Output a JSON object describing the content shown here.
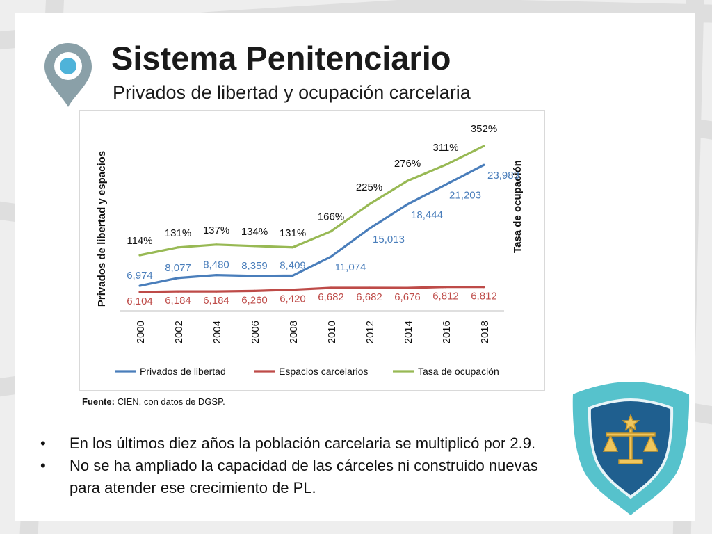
{
  "slide": {
    "title": "Sistema Penitenciario",
    "subtitle": "Privados de libertad y ocupación carcelaria",
    "source_label": "Fuente:",
    "source_text": "CIEN, con datos de DGSP.",
    "bullets": [
      "En los últimos diez años la población carcelaria se multiplicó por 2.9.",
      "No se ha ampliado la capacidad de las cárceles ni construido nuevas para atender ese crecimiento de PL."
    ],
    "bullet_glyph": "•"
  },
  "icons": {
    "location_pin": "location-pin-icon",
    "justice_badge": "scales-of-justice-icon"
  },
  "colors": {
    "pin": "#8aa0a8",
    "pin_inner": "#4fb3d9",
    "badge_outer": "#56c2cc",
    "badge_inner": "#1f5f8f"
  },
  "chart_data": {
    "type": "line",
    "x": [
      "2000",
      "2002",
      "2004",
      "2006",
      "2008",
      "2010",
      "2012",
      "2014",
      "2016",
      "2018"
    ],
    "ylabel_left": "Privados de libertad y espacios",
    "ylabel_right": "Tasa de ocupación",
    "series": [
      {
        "name": "Privados de libertad",
        "axis": "left",
        "color": "#4a7ebb",
        "values": [
          6974,
          8077,
          8480,
          8359,
          8409,
          11074,
          15013,
          18444,
          21203,
          23983
        ],
        "labels": [
          "6,974",
          "8,077",
          "8,480",
          "8,359",
          "8,409",
          "11,074",
          "15,013",
          "18,444",
          "21,203",
          "23,983"
        ]
      },
      {
        "name": "Espacios carcelarios",
        "axis": "left",
        "color": "#be4b48",
        "values": [
          6104,
          6184,
          6184,
          6260,
          6420,
          6682,
          6682,
          6676,
          6812,
          6812
        ],
        "labels": [
          "6,104",
          "6,184",
          "6,184",
          "6,260",
          "6,420",
          "6,682",
          "6,682",
          "6,676",
          "6,812",
          "6,812"
        ]
      },
      {
        "name": "Tasa de ocupación",
        "axis": "right",
        "color": "#98b954",
        "values": [
          114,
          131,
          137,
          134,
          131,
          166,
          225,
          276,
          311,
          352
        ],
        "labels": [
          "114%",
          "131%",
          "137%",
          "134%",
          "131%",
          "166%",
          "225%",
          "276%",
          "311%",
          "352%"
        ]
      }
    ],
    "legend_position": "bottom",
    "grid": false
  }
}
